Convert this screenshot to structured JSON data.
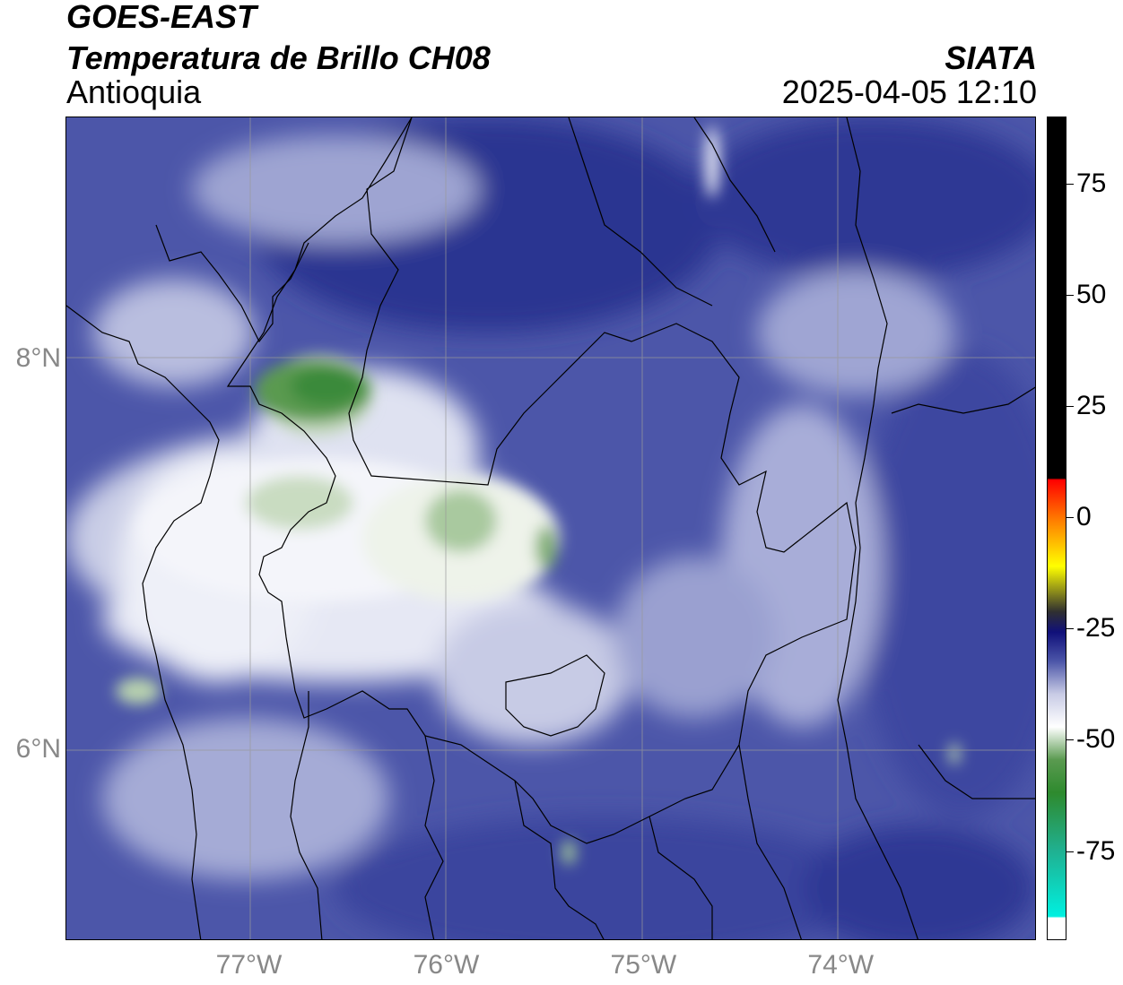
{
  "header": {
    "satellite": "GOES-EAST",
    "product": "Temperatura de Brillo CH08",
    "region": "Antioquia",
    "organization": "SIATA",
    "timestamp": "2025-04-05 12:10"
  },
  "map": {
    "lat_labels": [
      {
        "value": 8,
        "text": "8°N"
      },
      {
        "value": 6,
        "text": "6°N"
      }
    ],
    "lon_labels": [
      {
        "value": -77,
        "text": "77°W"
      },
      {
        "value": -76,
        "text": "76°W"
      },
      {
        "value": -75,
        "text": "75°W"
      },
      {
        "value": -74,
        "text": "74°W"
      }
    ],
    "extent": {
      "lon_min": -77.93,
      "lon_max": -73.01,
      "lat_min": 5.02,
      "lat_max": 9.24
    },
    "colors": {
      "cold_cloud_green": "#3a8a3a",
      "background_blue": "#4a55a8",
      "deep_blue": "#2a3390",
      "white": "#ffffff",
      "border_line": "#000000",
      "grid_line": "#999999"
    }
  },
  "colorbar": {
    "range": [
      -95,
      90
    ],
    "ticks": [
      {
        "value": 75,
        "text": "75"
      },
      {
        "value": 50,
        "text": "50"
      },
      {
        "value": 25,
        "text": "25"
      },
      {
        "value": 0,
        "text": "0"
      },
      {
        "value": -25,
        "text": "-25"
      },
      {
        "value": -50,
        "text": "-50"
      },
      {
        "value": -75,
        "text": "-75"
      }
    ]
  }
}
